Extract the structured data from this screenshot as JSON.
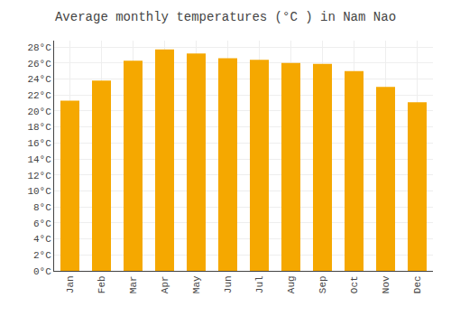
{
  "chart_data": {
    "type": "bar",
    "title": "Average monthly temperatures (°C ) in Nam Nao",
    "categories": [
      "Jan",
      "Feb",
      "Mar",
      "Apr",
      "May",
      "Jun",
      "Jul",
      "Aug",
      "Sep",
      "Oct",
      "Nov",
      "Dec"
    ],
    "values": [
      21.3,
      23.8,
      26.3,
      27.7,
      27.2,
      26.6,
      26.4,
      26.0,
      25.9,
      25.0,
      23.0,
      21.1
    ],
    "color": "#F5A800",
    "ylim": [
      0,
      28.8
    ],
    "yticks": [
      {
        "value": 0,
        "label": "0°C"
      },
      {
        "value": 2,
        "label": "2°C"
      },
      {
        "value": 4,
        "label": "4°C"
      },
      {
        "value": 6,
        "label": "6°C"
      },
      {
        "value": 8,
        "label": "8°C"
      },
      {
        "value": 10,
        "label": "10°C"
      },
      {
        "value": 12,
        "label": "12°C"
      },
      {
        "value": 14,
        "label": "14°C"
      },
      {
        "value": 16,
        "label": "16°C"
      },
      {
        "value": 18,
        "label": "18°C"
      },
      {
        "value": 20,
        "label": "20°C"
      },
      {
        "value": 22,
        "label": "22°C"
      },
      {
        "value": 24,
        "label": "24°C"
      },
      {
        "value": 26,
        "label": "26°C"
      },
      {
        "value": 28,
        "label": "28°C"
      }
    ],
    "grid": true
  }
}
